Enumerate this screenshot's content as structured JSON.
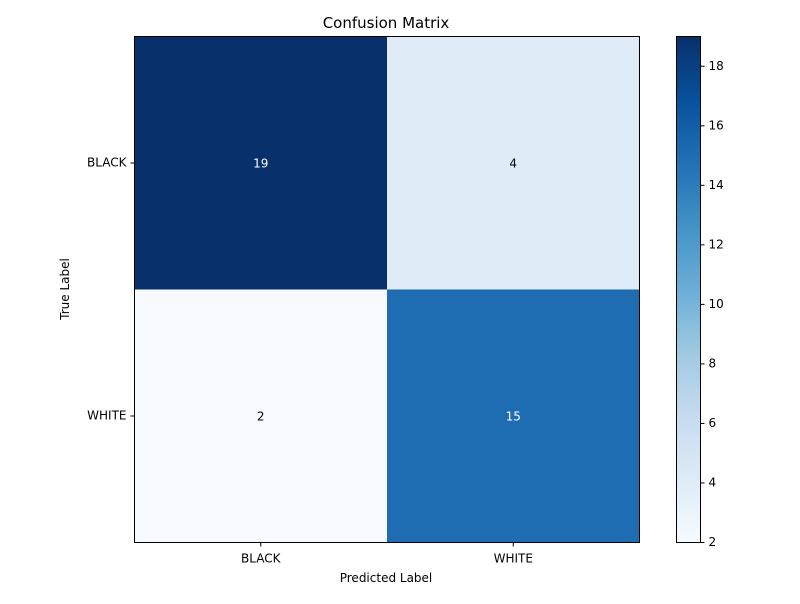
{
  "chart_data": {
    "type": "heatmap",
    "title": "Confusion Matrix",
    "xlabel": "Predicted Label",
    "ylabel": "True Label",
    "x_categories": [
      "BLACK",
      "WHITE"
    ],
    "y_categories": [
      "BLACK",
      "WHITE"
    ],
    "values": [
      [
        19,
        4
      ],
      [
        2,
        15
      ]
    ],
    "colormap": "Blues",
    "color_range": [
      2,
      19
    ],
    "colorbar_ticks": [
      2,
      4,
      6,
      8,
      10,
      12,
      14,
      16,
      18
    ],
    "colorbar_tick_labels": [
      "2",
      "4",
      "6",
      "8",
      "10",
      "12",
      "14",
      "16",
      "18"
    ],
    "grid": false
  }
}
